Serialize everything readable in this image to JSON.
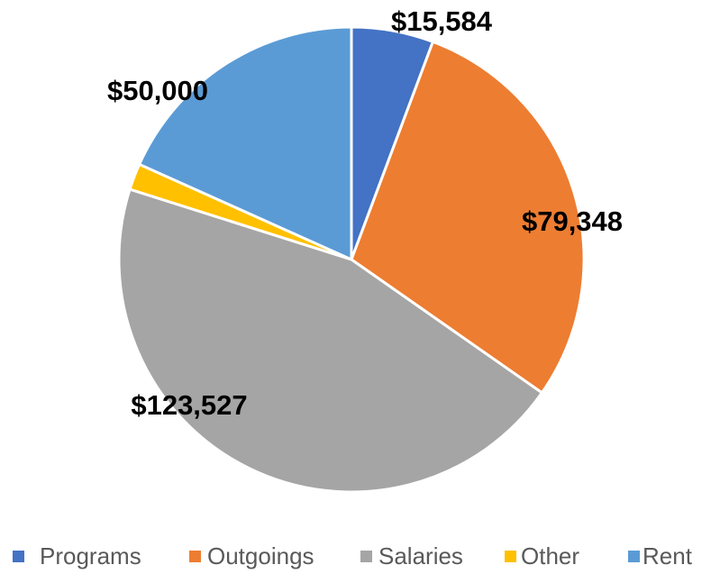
{
  "chart_data": {
    "type": "pie",
    "categories": [
      "Programs",
      "Outgoings",
      "Salaries",
      "Other",
      "Rent"
    ],
    "values": [
      15584,
      79348,
      123527,
      5000,
      50000
    ],
    "value_labels": [
      "$15,584",
      "$79,348",
      "$123,527",
      null,
      "$50,000"
    ],
    "colors": [
      "#4472c4",
      "#ed7d31",
      "#a5a5a5",
      "#ffc000",
      "#5b9bd5"
    ],
    "legend": "bottom"
  }
}
